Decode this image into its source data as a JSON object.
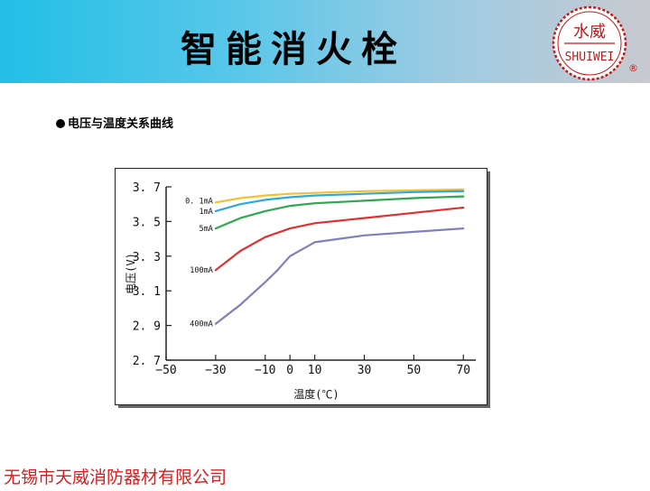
{
  "header": {
    "title": "智能消火栓"
  },
  "logo": {
    "text_cn": "水威",
    "text_en": "SHUIWEI",
    "registered": "®",
    "color": "#c21a1a"
  },
  "section": {
    "label": "电压与温度关系曲线"
  },
  "chart_data": {
    "type": "line",
    "xlabel": "温度(℃)",
    "ylabel": "电压(V)",
    "xlim": [
      -50,
      75
    ],
    "ylim": [
      2.7,
      3.7
    ],
    "xticks": [
      -50,
      -30,
      -10,
      0,
      10,
      30,
      50,
      70
    ],
    "xtick_labels": [
      "−50",
      "−30",
      "−10",
      "0",
      "10",
      "30",
      "50",
      "70"
    ],
    "yticks": [
      2.7,
      2.9,
      3.1,
      3.3,
      3.5,
      3.7
    ],
    "ytick_labels": [
      "2. 7",
      "2. 9",
      "3. 1",
      "3. 3",
      "3. 5",
      "3. 7"
    ],
    "grid": false,
    "series": [
      {
        "name": "0. 1mA",
        "color": "#f2c12e",
        "x": [
          -30,
          -20,
          -10,
          0,
          10,
          30,
          50,
          70
        ],
        "y": [
          3.61,
          3.635,
          3.65,
          3.66,
          3.665,
          3.675,
          3.68,
          3.685
        ]
      },
      {
        "name": "1mA",
        "color": "#2aa9e0",
        "x": [
          -30,
          -20,
          -10,
          0,
          10,
          30,
          50,
          70
        ],
        "y": [
          3.56,
          3.6,
          3.625,
          3.64,
          3.65,
          3.66,
          3.67,
          3.675
        ]
      },
      {
        "name": "5mA",
        "color": "#2fa84f",
        "x": [
          -30,
          -20,
          -10,
          0,
          10,
          30,
          50,
          70
        ],
        "y": [
          3.46,
          3.52,
          3.56,
          3.59,
          3.605,
          3.62,
          3.635,
          3.645
        ]
      },
      {
        "name": "100mA",
        "color": "#e03030",
        "x": [
          -30,
          -20,
          -10,
          0,
          10,
          30,
          50,
          70
        ],
        "y": [
          3.22,
          3.33,
          3.41,
          3.46,
          3.49,
          3.52,
          3.55,
          3.58
        ]
      },
      {
        "name": "400mA",
        "color": "#7f7fba",
        "x": [
          -30,
          -20,
          -10,
          -5,
          0,
          10,
          30,
          50,
          70
        ],
        "y": [
          2.91,
          3.02,
          3.15,
          3.22,
          3.3,
          3.38,
          3.42,
          3.44,
          3.46
        ]
      }
    ]
  },
  "footer": {
    "company": "无锡市天威消防器材有限公司"
  }
}
